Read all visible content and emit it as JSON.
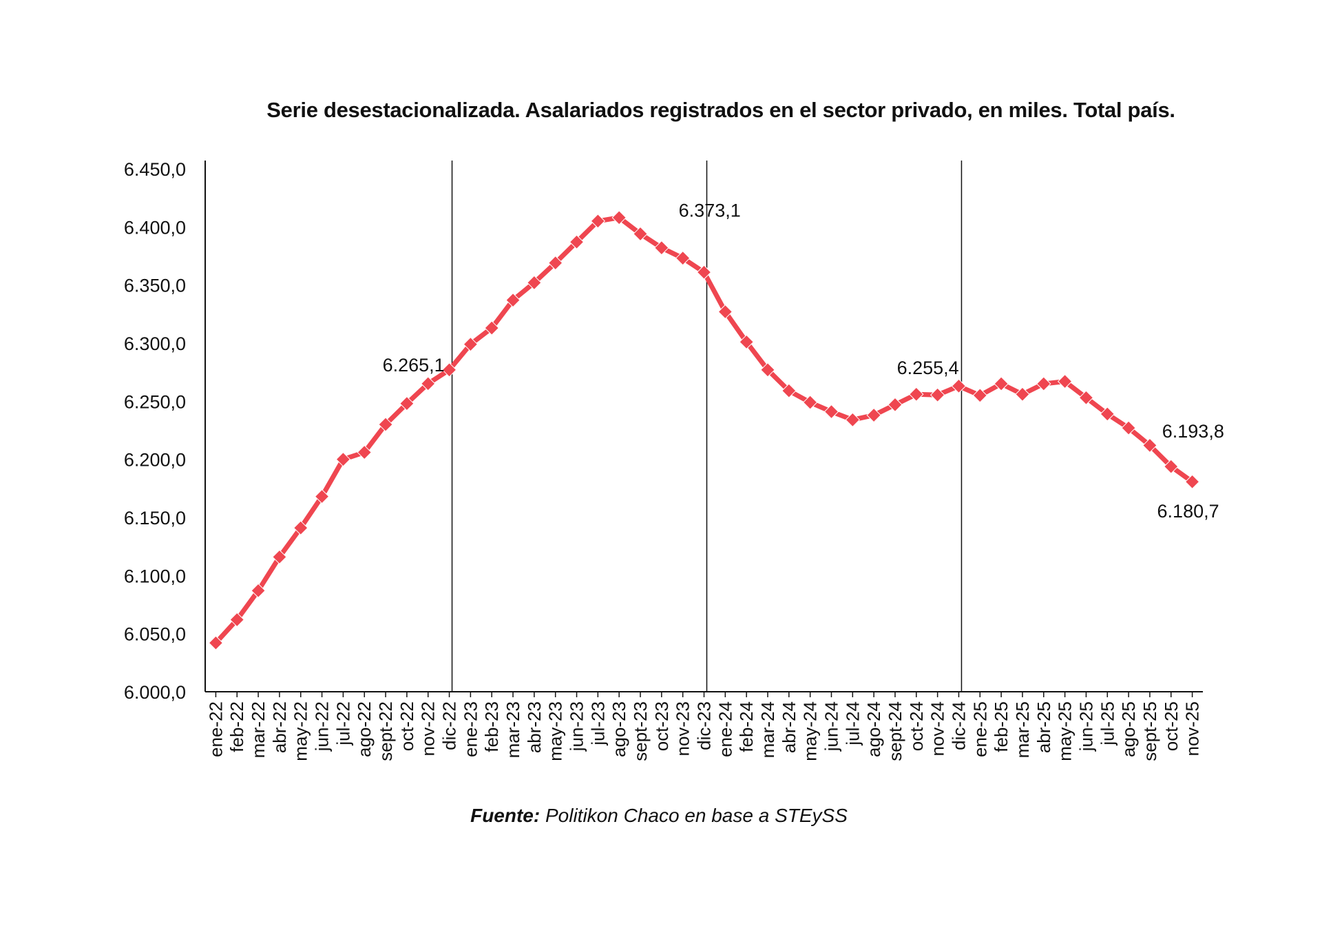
{
  "chart_data": {
    "type": "line",
    "title": "Serie desestacionalizada. Asalariados registrados en el sector privado, en miles. Total país.",
    "source_label": "Fuente:",
    "source_text": "Politikon Chaco en base a STEySS",
    "xlabel": "",
    "ylabel": "",
    "ylim": [
      6000,
      6450
    ],
    "yticks": [
      "6.000,0",
      "6.050,0",
      "6.100,0",
      "6.150,0",
      "6.200,0",
      "6.250,0",
      "6.300,0",
      "6.350,0",
      "6.400,0",
      "6.450,0"
    ],
    "grid": false,
    "color": "#ef4650",
    "categories": [
      "ene-22",
      "feb-22",
      "mar-22",
      "abr-22",
      "may-22",
      "jun-22",
      "jul-22",
      "ago-22",
      "sept-22",
      "oct-22",
      "nov-22",
      "dic-22",
      "ene-23",
      "feb-23",
      "mar-23",
      "abr-23",
      "may-23",
      "jun-23",
      "jul-23",
      "ago-23",
      "sept-23",
      "oct-23",
      "nov-23",
      "dic-23",
      "ene-24",
      "feb-24",
      "mar-24",
      "abr-24",
      "may-24",
      "jun-24",
      "jul-24",
      "ago-24",
      "sept-24",
      "oct-24",
      "nov-24",
      "dic-24",
      "ene-25",
      "feb-25",
      "mar-25",
      "abr-25",
      "may-25",
      "jun-25",
      "jul-25",
      "ago-25",
      "sept-25",
      "oct-25",
      "nov-25"
    ],
    "series": [
      {
        "name": "Asalariados registrados",
        "values": [
          6042,
          6062,
          6087,
          6116,
          6141,
          6168,
          6200,
          6206,
          6230,
          6248,
          6265.1,
          6277,
          6299,
          6313,
          6337,
          6352,
          6369,
          6387,
          6405,
          6408,
          6394,
          6382,
          6373.1,
          6361,
          6327,
          6301,
          6277,
          6259,
          6249,
          6241,
          6234,
          6238,
          6247,
          6256,
          6255.4,
          6263,
          6255,
          6265,
          6256,
          6265,
          6267,
          6253,
          6239,
          6227,
          6212,
          6193.8,
          6180.7
        ]
      }
    ],
    "separators": [
      "dic-22",
      "dic-23",
      "dic-24"
    ],
    "annotations": [
      {
        "category": "nov-22",
        "text": "6.265,1"
      },
      {
        "category": "nov-23",
        "text": "6.373,1"
      },
      {
        "category": "nov-24",
        "text": "6.255,4"
      },
      {
        "category": "oct-25",
        "text": "6.193,8"
      },
      {
        "category": "nov-25",
        "text": "6.180,7"
      }
    ]
  }
}
